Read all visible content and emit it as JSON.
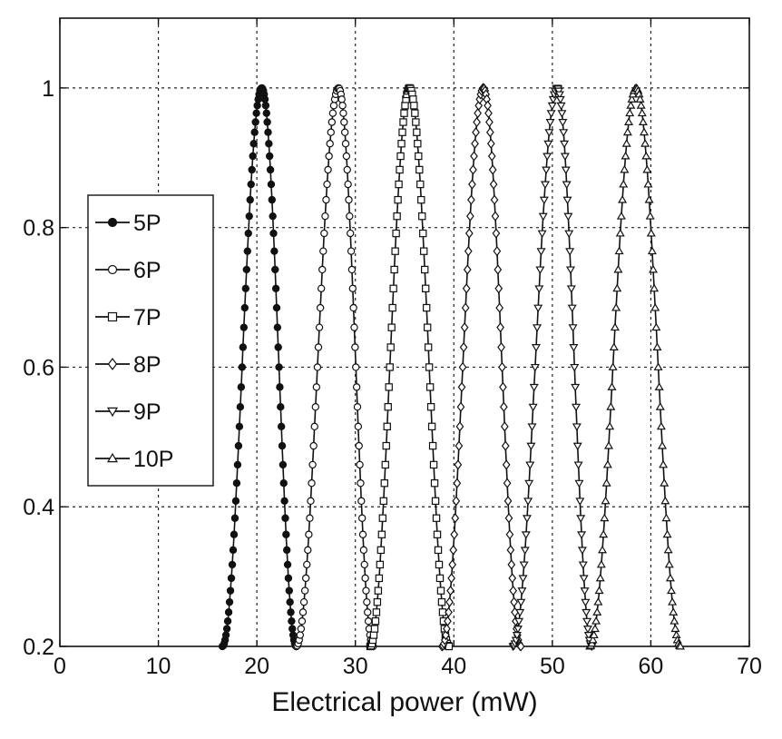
{
  "chart_data": {
    "type": "line",
    "title": "",
    "xlabel": "Electrical power (mW)",
    "ylabel": "",
    "xlim": [
      0,
      70
    ],
    "ylim": [
      0.2,
      1.1
    ],
    "xticks": [
      0,
      10,
      20,
      30,
      40,
      50,
      60,
      70
    ],
    "yticks": [
      0.2,
      0.4,
      0.6,
      0.8,
      1.0
    ],
    "xtick_labels": [
      "0",
      "10",
      "20",
      "30",
      "40",
      "50",
      "60",
      "70"
    ],
    "ytick_labels": [
      "0.2",
      "0.4",
      "0.6",
      "0.8",
      "1"
    ],
    "grid": true,
    "legend_position": "left-middle",
    "series": [
      {
        "name": "5P",
        "marker": "filled-circle",
        "left": 16.5,
        "peak": 20.5,
        "right": 24.0
      },
      {
        "name": "6P",
        "marker": "circle",
        "left": 24.0,
        "peak": 28.3,
        "right": 31.8
      },
      {
        "name": "7P",
        "marker": "square",
        "left": 31.5,
        "peak": 35.5,
        "right": 39.5
      },
      {
        "name": "8P",
        "marker": "diamond",
        "left": 38.8,
        "peak": 43.0,
        "right": 46.8
      },
      {
        "name": "9P",
        "marker": "triangle-down",
        "left": 46.0,
        "peak": 50.5,
        "right": 54.0
      },
      {
        "name": "10P",
        "marker": "triangle-up",
        "left": 53.8,
        "peak": 58.5,
        "right": 63.0
      }
    ]
  }
}
